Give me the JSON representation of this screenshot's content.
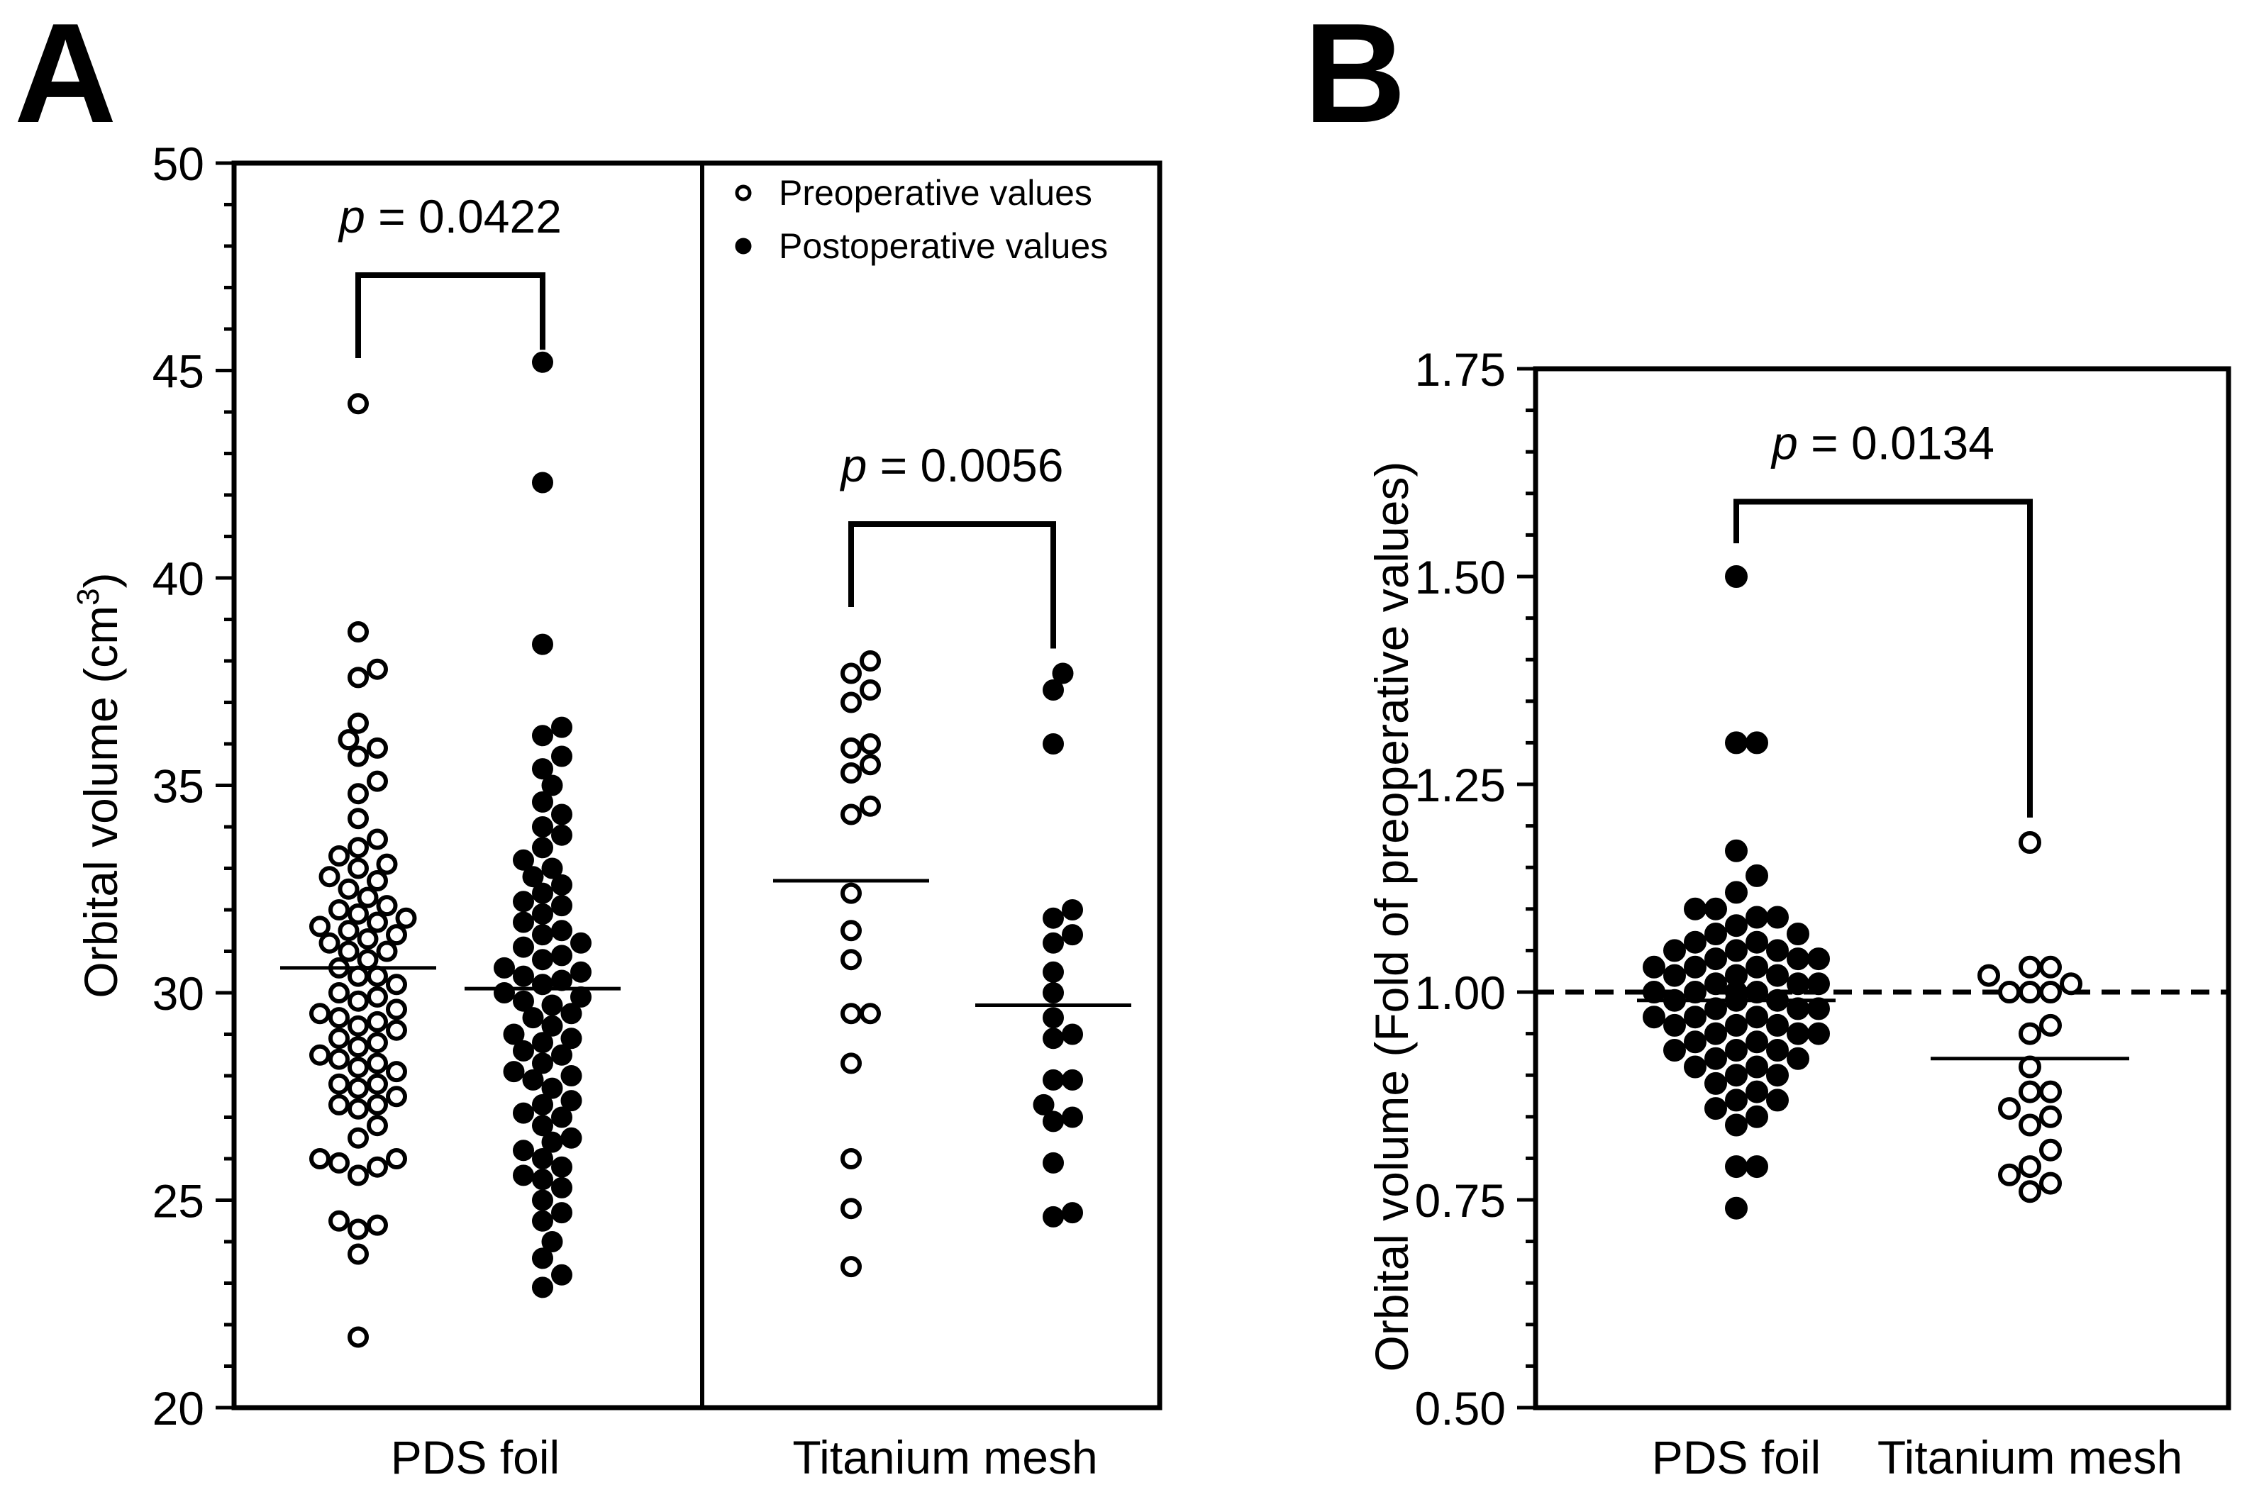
{
  "colors": {
    "ink": "#000000",
    "background": "#ffffff"
  },
  "chart_data": [
    {
      "panel_label": "A",
      "type": "scatter",
      "subtype": "dot-plot",
      "ylabel_main": "Orbital volume (cm",
      "ylabel_sup": "3",
      "ylabel_close": ")",
      "ylim": [
        20,
        50
      ],
      "yticks": [
        20,
        25,
        30,
        35,
        40,
        45,
        50
      ],
      "minor_step": 1,
      "groups": [
        "PDS foil",
        "Titanium mesh"
      ],
      "legend": {
        "position": "top-right",
        "entries": [
          {
            "label": "Preoperative values",
            "marker": "open-circle"
          },
          {
            "label": "Postoperative values",
            "marker": "filled-circle"
          }
        ]
      },
      "series": [
        {
          "name": "PDS foil - Preoperative values",
          "group": "PDS foil",
          "marker": "open",
          "mean": 30.6,
          "values": [
            21.7,
            23.7,
            24.3,
            24.4,
            24.5,
            25.6,
            25.8,
            25.9,
            26.0,
            26.0,
            26.5,
            26.8,
            27.2,
            27.3,
            27.3,
            27.5,
            27.7,
            27.8,
            27.8,
            28.1,
            28.2,
            28.3,
            28.4,
            28.5,
            28.7,
            28.8,
            28.9,
            29.1,
            29.2,
            29.3,
            29.4,
            29.5,
            29.6,
            29.8,
            29.9,
            30.0,
            30.2,
            30.4,
            30.4,
            30.6,
            30.8,
            31.0,
            31.0,
            31.2,
            31.3,
            31.4,
            31.5,
            31.6,
            31.7,
            31.8,
            31.9,
            32.0,
            32.1,
            32.3,
            32.5,
            32.7,
            32.8,
            33.0,
            33.1,
            33.3,
            33.5,
            33.7,
            34.2,
            34.8,
            35.1,
            35.7,
            35.9,
            36.1,
            36.5,
            37.6,
            37.8,
            38.7,
            44.2
          ]
        },
        {
          "name": "PDS foil - Postoperative values",
          "group": "PDS foil",
          "marker": "filled",
          "mean": 30.1,
          "values": [
            22.9,
            23.2,
            23.6,
            24.0,
            24.5,
            24.7,
            25.0,
            25.3,
            25.5,
            25.6,
            25.8,
            26.0,
            26.2,
            26.4,
            26.5,
            26.8,
            27.0,
            27.1,
            27.3,
            27.4,
            27.7,
            27.9,
            28.0,
            28.1,
            28.3,
            28.5,
            28.6,
            28.8,
            28.9,
            29.0,
            29.2,
            29.4,
            29.5,
            29.7,
            29.8,
            29.9,
            30.0,
            30.2,
            30.3,
            30.4,
            30.5,
            30.6,
            30.8,
            30.9,
            31.1,
            31.2,
            31.4,
            31.5,
            31.7,
            31.9,
            32.1,
            32.2,
            32.4,
            32.6,
            32.8,
            33.0,
            33.2,
            33.5,
            33.8,
            34.0,
            34.3,
            34.6,
            35.0,
            35.4,
            35.7,
            36.2,
            36.4,
            38.4,
            42.3,
            45.2
          ]
        },
        {
          "name": "Titanium mesh - Preoperative values",
          "group": "Titanium mesh",
          "marker": "open",
          "mean": 32.7,
          "values": [
            23.4,
            24.8,
            26.0,
            28.3,
            29.5,
            29.5,
            30.8,
            31.5,
            32.4,
            34.3,
            34.5,
            35.3,
            35.5,
            35.9,
            36.0,
            37.0,
            37.3,
            37.7,
            38.0
          ]
        },
        {
          "name": "Titanium mesh - Postoperative values",
          "group": "Titanium mesh",
          "marker": "filled",
          "mean": 29.7,
          "values": [
            24.6,
            24.7,
            25.9,
            26.9,
            27.0,
            27.3,
            27.9,
            27.9,
            28.9,
            29.0,
            29.4,
            30.0,
            30.5,
            31.2,
            31.4,
            31.8,
            32.0,
            36.0,
            37.3,
            37.7
          ]
        }
      ],
      "annotations": [
        {
          "p_symbol": "p",
          "p_rest": " = 0.0422",
          "group": "PDS foil",
          "bracket_y": 47.3,
          "left_tip": 45.3,
          "right_tip": 45.5
        },
        {
          "p_symbol": "p",
          "p_rest": " = 0.0056",
          "group": "Titanium mesh",
          "bracket_y": 41.3,
          "left_tip": 39.3,
          "right_tip": 38.3
        }
      ]
    },
    {
      "panel_label": "B",
      "type": "scatter",
      "subtype": "dot-plot",
      "ylabel": "Orbital volume (Fold of preoperative values)",
      "ylim": [
        0.5,
        1.75
      ],
      "yticks": [
        "0.50",
        "0.75",
        "1.00",
        "1.25",
        "1.50",
        "1.75"
      ],
      "minor_step": 0.05,
      "reference_line": 1.0,
      "groups": [
        "PDS foil",
        "Titanium mesh"
      ],
      "series": [
        {
          "name": "PDS foil",
          "group": "PDS foil",
          "marker": "filled",
          "mean": 0.99,
          "values": [
            0.74,
            0.79,
            0.79,
            0.84,
            0.85,
            0.86,
            0.87,
            0.87,
            0.88,
            0.89,
            0.9,
            0.9,
            0.91,
            0.91,
            0.92,
            0.92,
            0.93,
            0.93,
            0.93,
            0.94,
            0.94,
            0.95,
            0.95,
            0.95,
            0.96,
            0.96,
            0.96,
            0.97,
            0.97,
            0.97,
            0.98,
            0.98,
            0.98,
            0.99,
            0.99,
            0.99,
            1.0,
            1.0,
            1.0,
            1.0,
            1.01,
            1.01,
            1.01,
            1.02,
            1.02,
            1.02,
            1.03,
            1.03,
            1.03,
            1.04,
            1.04,
            1.04,
            1.05,
            1.05,
            1.05,
            1.06,
            1.06,
            1.07,
            1.07,
            1.08,
            1.09,
            1.09,
            1.1,
            1.1,
            1.12,
            1.14,
            1.17,
            1.3,
            1.3,
            1.5
          ]
        },
        {
          "name": "Titanium mesh",
          "group": "Titanium mesh",
          "marker": "open",
          "mean": 0.92,
          "values": [
            0.76,
            0.77,
            0.78,
            0.79,
            0.81,
            0.84,
            0.85,
            0.86,
            0.88,
            0.88,
            0.91,
            0.95,
            0.96,
            1.0,
            1.0,
            1.0,
            1.01,
            1.02,
            1.03,
            1.03,
            1.18
          ]
        }
      ],
      "annotations": [
        {
          "p_symbol": "p",
          "p_rest": " = 0.0134",
          "bracket_y": 1.59,
          "left_tip": 1.54,
          "right_tip": 1.21
        }
      ]
    }
  ]
}
